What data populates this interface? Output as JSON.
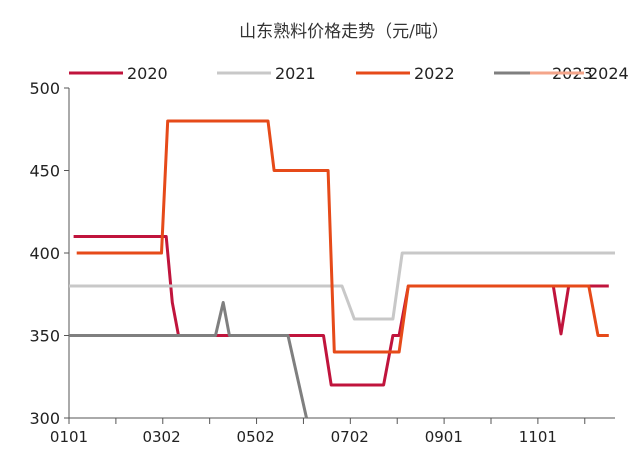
{
  "chart_data": {
    "type": "line",
    "title": "山东熟料价格走势（元/吨）",
    "xlabel": "",
    "ylabel": "",
    "ylim": [
      300,
      500
    ],
    "yticks": [
      300,
      350,
      400,
      450,
      500
    ],
    "xlim": [
      0,
      354
    ],
    "xticks": [
      {
        "label": "0101",
        "x": 0
      },
      {
        "label": "0302",
        "x": 60
      },
      {
        "label": "0502",
        "x": 121
      },
      {
        "label": "0702",
        "x": 182
      },
      {
        "label": "0901",
        "x": 243
      },
      {
        "label": "1101",
        "x": 304
      }
    ],
    "grid": false,
    "legend_position": "top",
    "series": [
      {
        "name": "2020",
        "color": "#c0143c",
        "points": [
          [
            3,
            410
          ],
          [
            63,
            410
          ],
          [
            67,
            370
          ],
          [
            71,
            350
          ],
          [
            108,
            350
          ],
          [
            148,
            350
          ],
          [
            165,
            350
          ],
          [
            170,
            320
          ],
          [
            204,
            320
          ],
          [
            210,
            350
          ],
          [
            214,
            350
          ],
          [
            220,
            380
          ],
          [
            314,
            380
          ],
          [
            319,
            351
          ],
          [
            324,
            380
          ],
          [
            350,
            380
          ]
        ]
      },
      {
        "name": "2021",
        "color": "#c8c8c8",
        "points": [
          [
            0,
            380
          ],
          [
            177,
            380
          ],
          [
            181,
            370
          ],
          [
            185,
            360
          ],
          [
            210,
            360
          ],
          [
            216,
            400
          ],
          [
            354,
            400
          ]
        ]
      },
      {
        "name": "2022",
        "color": "#e64a19",
        "points": [
          [
            5,
            400
          ],
          [
            60,
            400
          ],
          [
            64,
            480
          ],
          [
            129,
            480
          ],
          [
            133,
            450
          ],
          [
            168,
            450
          ],
          [
            172,
            340
          ],
          [
            214,
            340
          ],
          [
            220,
            380
          ],
          [
            337,
            380
          ],
          [
            343,
            350
          ],
          [
            350,
            350
          ]
        ]
      },
      {
        "name": "2023",
        "color": "#7f7f7f",
        "points": [
          [
            0,
            350
          ],
          [
            95,
            350
          ],
          [
            100,
            370
          ],
          [
            104,
            350
          ],
          [
            142,
            350
          ],
          [
            154,
            300
          ]
        ]
      },
      {
        "name": "2024",
        "color": "#f4a58a",
        "points": []
      }
    ]
  }
}
